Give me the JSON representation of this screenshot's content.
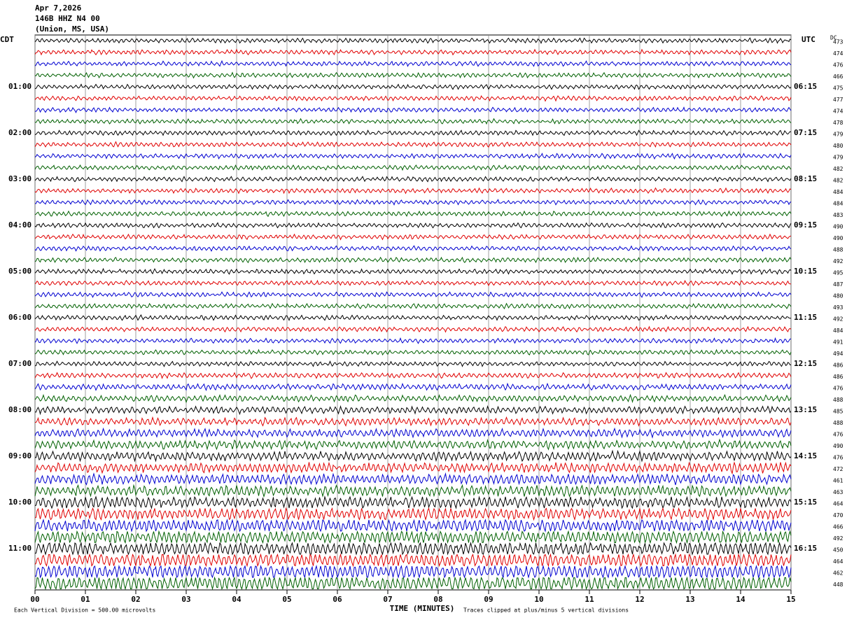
{
  "header": {
    "date": "Apr 7,2026",
    "station": "146B HHZ N4 00",
    "location": "(Union, MS, USA)"
  },
  "left_axis": {
    "title": "CDT",
    "labels": [
      "01:00",
      "02:00",
      "03:00",
      "04:00",
      "05:00",
      "06:00",
      "07:00",
      "08:00",
      "09:00",
      "10:00",
      "11:00"
    ]
  },
  "right_axis": {
    "title": "UTC",
    "labels": [
      "06:15",
      "07:15",
      "08:15",
      "09:15",
      "10:15",
      "11:15",
      "12:15",
      "13:15",
      "14:15",
      "15:15",
      "16:15"
    ]
  },
  "dc": {
    "title": "DC",
    "values": [
      473,
      474,
      476,
      466,
      475,
      477,
      474,
      478,
      479,
      480,
      479,
      482,
      482,
      484,
      484,
      483,
      490,
      490,
      488,
      492,
      495,
      487,
      480,
      493,
      492,
      484,
      491,
      494,
      486,
      486,
      476,
      488,
      485,
      488,
      476,
      490,
      476,
      472,
      461,
      463,
      464,
      470,
      466,
      492,
      450,
      464,
      462,
      448
    ]
  },
  "x_axis": {
    "title": "TIME (MINUTES)",
    "ticks": [
      "00",
      "01",
      "02",
      "03",
      "04",
      "05",
      "06",
      "07",
      "08",
      "09",
      "10",
      "11",
      "12",
      "13",
      "14",
      "15"
    ]
  },
  "trace_colors": [
    "#000000",
    "#e00000",
    "#0000d0",
    "#006000"
  ],
  "footer": {
    "scale": "Each Vertical Division =  500.00 microvolts",
    "clip": "Traces clipped at plus/minus 5 vertical divisions"
  }
}
